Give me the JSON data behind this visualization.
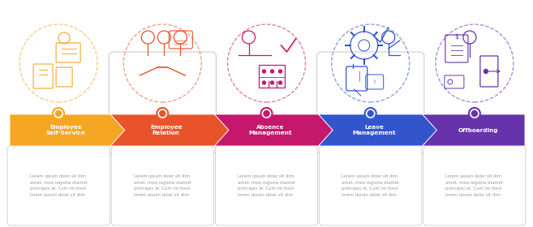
{
  "steps": [
    {
      "title": "Employee\nSelf-Service",
      "color": "#F5A623",
      "dot_color": "#F5A623",
      "icon_color": "#F5A623",
      "has_outer_box": false
    },
    {
      "title": "Employee\nRelation",
      "color": "#E8532A",
      "dot_color": "#E8532A",
      "icon_color": "#E8532A",
      "has_outer_box": true
    },
    {
      "title": "Absence\nManagement",
      "color": "#C4186C",
      "dot_color": "#C4186C",
      "icon_color": "#C4186C",
      "has_outer_box": false
    },
    {
      "title": "Leave\nManagement",
      "color": "#3355CC",
      "dot_color": "#3355CC",
      "icon_color": "#3355CC",
      "has_outer_box": true
    },
    {
      "title": "Offboarding",
      "color": "#6633AA",
      "dot_color": "#6633AA",
      "icon_color": "#6633AA",
      "has_outer_box": false
    }
  ],
  "body_text": "Lorem ipsum dolor sit dim\namet, mea regione diamet\nprincipes at. Cum no movi\nlorem ipsum dolor sit dim",
  "background_color": "#ffffff",
  "arrow_line_color": "#aaaaaa",
  "box_border_color": "#cccccc",
  "text_color": "#999999",
  "title_text_color": "#ffffff",
  "n_steps": 5,
  "fig_width": 6.57,
  "fig_height": 2.8
}
